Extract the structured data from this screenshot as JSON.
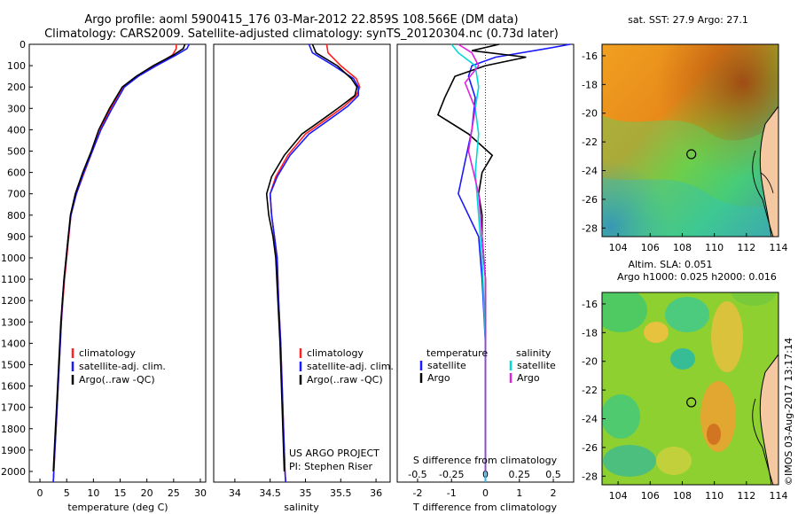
{
  "title": {
    "line1": "Argo profile: aoml 5900415_176 03-Mar-2012 22.859S 108.566E (DM data)",
    "line2": "Climatology: CARS2009. Satellite-adjusted climatology: synTS_20120304.nc (0.73d later)"
  },
  "watermark": "©IMOS 03-Aug-2017 13:17:14",
  "colors": {
    "climatology": "#ff2020",
    "satellite": "#1a1aff",
    "argo": "#000000",
    "sal_satellite": "#00d8d8",
    "sal_argo": "#e020e0"
  },
  "chart_data": [
    {
      "type": "line",
      "id": "temperature",
      "xlabel": "temperature (deg C)",
      "ylabel": "",
      "xlim": [
        -2,
        31
      ],
      "ylim": [
        2050,
        0
      ],
      "xticks": [
        "0",
        "5",
        "10",
        "15",
        "20",
        "25",
        "30"
      ],
      "yticks": [
        "0",
        "100",
        "200",
        "300",
        "400",
        "500",
        "600",
        "700",
        "800",
        "900",
        "1000",
        "1100",
        "1200",
        "1300",
        "1400",
        "1500",
        "1600",
        "1700",
        "1800",
        "1900",
        "2000"
      ],
      "legend": [
        "climatology",
        "satellite-adj. clim.",
        "Argo(..raw -QC)"
      ],
      "series": [
        {
          "name": "climatology",
          "color": "climatology",
          "points": [
            [
              25.5,
              0
            ],
            [
              25.5,
              20
            ],
            [
              24.8,
              50
            ],
            [
              21.5,
              100
            ],
            [
              18.2,
              150
            ],
            [
              15.5,
              200
            ],
            [
              13.2,
              300
            ],
            [
              11.3,
              400
            ],
            [
              9.8,
              500
            ],
            [
              8.3,
              600
            ],
            [
              6.8,
              700
            ],
            [
              5.8,
              800
            ],
            [
              5.4,
              900
            ],
            [
              5.0,
              1000
            ],
            [
              4.6,
              1100
            ],
            [
              4.3,
              1200
            ],
            [
              4.0,
              1300
            ],
            [
              3.8,
              1400
            ],
            [
              3.6,
              1500
            ],
            [
              3.4,
              1600
            ],
            [
              3.2,
              1700
            ],
            [
              3.0,
              1800
            ],
            [
              2.8,
              1900
            ],
            [
              2.6,
              2000
            ],
            [
              2.5,
              2050
            ]
          ]
        },
        {
          "name": "satellite-adj. clim.",
          "color": "satellite",
          "points": [
            [
              27.9,
              0
            ],
            [
              27.5,
              20
            ],
            [
              25.5,
              50
            ],
            [
              21.8,
              100
            ],
            [
              18.4,
              150
            ],
            [
              15.8,
              200
            ],
            [
              13.5,
              300
            ],
            [
              11.4,
              400
            ],
            [
              9.8,
              500
            ],
            [
              8.2,
              600
            ],
            [
              6.8,
              700
            ],
            [
              5.8,
              800
            ],
            [
              5.3,
              900
            ],
            [
              4.9,
              1000
            ],
            [
              4.5,
              1100
            ],
            [
              4.2,
              1200
            ],
            [
              4.0,
              1300
            ],
            [
              3.8,
              1400
            ],
            [
              3.6,
              1500
            ],
            [
              3.4,
              1600
            ],
            [
              3.2,
              1700
            ],
            [
              3.0,
              1800
            ],
            [
              2.8,
              1900
            ],
            [
              2.6,
              2000
            ],
            [
              2.5,
              2050
            ]
          ]
        },
        {
          "name": "Argo(..raw -QC)",
          "color": "argo",
          "points": [
            [
              27.1,
              0
            ],
            [
              26.8,
              20
            ],
            [
              25.0,
              50
            ],
            [
              21.2,
              100
            ],
            [
              18.0,
              150
            ],
            [
              15.4,
              200
            ],
            [
              13.0,
              300
            ],
            [
              11.0,
              400
            ],
            [
              9.6,
              500
            ],
            [
              8.0,
              600
            ],
            [
              6.6,
              700
            ],
            [
              5.7,
              800
            ],
            [
              5.3,
              900
            ],
            [
              4.9,
              1000
            ],
            [
              4.5,
              1100
            ],
            [
              4.2,
              1200
            ],
            [
              3.9,
              1300
            ],
            [
              3.7,
              1400
            ],
            [
              3.5,
              1500
            ],
            [
              3.3,
              1600
            ],
            [
              3.1,
              1700
            ],
            [
              2.9,
              1800
            ],
            [
              2.7,
              1900
            ],
            [
              2.5,
              2000
            ]
          ]
        }
      ]
    },
    {
      "type": "line",
      "id": "salinity",
      "xlabel": "salinity",
      "ylabel": "",
      "xlim": [
        33.7,
        36.2
      ],
      "ylim": [
        2050,
        0
      ],
      "xticks": [
        "34",
        "34.5",
        "35",
        "35.5",
        "36"
      ],
      "legend": [
        "climatology",
        "satellite-adj. clim.",
        "Argo(..raw -QC)"
      ],
      "annotation": [
        "US ARGO PROJECT",
        "PI: Stephen Riser"
      ],
      "series": [
        {
          "name": "climatology",
          "color": "climatology",
          "points": [
            [
              35.3,
              0
            ],
            [
              35.32,
              40
            ],
            [
              35.5,
              100
            ],
            [
              35.72,
              160
            ],
            [
              35.77,
              200
            ],
            [
              35.72,
              240
            ],
            [
              35.55,
              290
            ],
            [
              35.3,
              350
            ],
            [
              35.0,
              420
            ],
            [
              34.75,
              520
            ],
            [
              34.58,
              620
            ],
            [
              34.5,
              700
            ],
            [
              34.52,
              800
            ],
            [
              34.56,
              900
            ],
            [
              34.6,
              1000
            ],
            [
              34.62,
              1200
            ],
            [
              34.65,
              1400
            ],
            [
              34.67,
              1600
            ],
            [
              34.69,
              1800
            ],
            [
              34.71,
              2000
            ],
            [
              34.72,
              2050
            ]
          ]
        },
        {
          "name": "satellite-adj. clim.",
          "color": "satellite",
          "points": [
            [
              35.05,
              0
            ],
            [
              35.1,
              40
            ],
            [
              35.4,
              100
            ],
            [
              35.68,
              160
            ],
            [
              35.75,
              200
            ],
            [
              35.75,
              240
            ],
            [
              35.6,
              290
            ],
            [
              35.35,
              350
            ],
            [
              35.05,
              420
            ],
            [
              34.78,
              520
            ],
            [
              34.6,
              620
            ],
            [
              34.5,
              700
            ],
            [
              34.52,
              800
            ],
            [
              34.56,
              900
            ],
            [
              34.6,
              1000
            ],
            [
              34.62,
              1200
            ],
            [
              34.65,
              1400
            ],
            [
              34.67,
              1600
            ],
            [
              34.69,
              1800
            ],
            [
              34.71,
              2000
            ],
            [
              34.72,
              2050
            ]
          ]
        },
        {
          "name": "Argo(..raw -QC)",
          "color": "argo",
          "points": [
            [
              35.1,
              0
            ],
            [
              35.15,
              40
            ],
            [
              35.45,
              100
            ],
            [
              35.65,
              160
            ],
            [
              35.73,
              200
            ],
            [
              35.7,
              240
            ],
            [
              35.5,
              290
            ],
            [
              35.25,
              350
            ],
            [
              34.95,
              420
            ],
            [
              34.7,
              520
            ],
            [
              34.52,
              620
            ],
            [
              34.45,
              700
            ],
            [
              34.48,
              800
            ],
            [
              34.54,
              900
            ],
            [
              34.58,
              1000
            ],
            [
              34.61,
              1200
            ],
            [
              34.64,
              1400
            ],
            [
              34.66,
              1600
            ],
            [
              34.68,
              1800
            ],
            [
              34.7,
              2000
            ]
          ]
        }
      ]
    },
    {
      "type": "line",
      "id": "difference",
      "xlabel": "T difference from climatology",
      "xlabel_top": "S difference from climatology",
      "xlim": [
        -2.6,
        2.6
      ],
      "ylim": [
        2050,
        0
      ],
      "xticks": [
        "-2",
        "-1",
        "0",
        "1",
        "2"
      ],
      "xticks_sal": [
        "-0.5",
        "-0.25",
        "0",
        "0.25",
        "0.5"
      ],
      "legend_headers": [
        "temperature",
        "salinity"
      ],
      "legend": [
        "satellite",
        "Argo",
        "satellite",
        "Argo"
      ],
      "series": [
        {
          "name": "satellite",
          "color": "satellite",
          "quantity": "temperature",
          "points": [
            [
              2.5,
              0
            ],
            [
              1.8,
              20
            ],
            [
              0.3,
              60
            ],
            [
              -0.4,
              100
            ],
            [
              -0.5,
              150
            ],
            [
              -0.3,
              250
            ],
            [
              -0.4,
              400
            ],
            [
              -0.6,
              550
            ],
            [
              -0.8,
              700
            ],
            [
              -0.5,
              800
            ],
            [
              -0.2,
              900
            ],
            [
              -0.1,
              1100
            ],
            [
              0,
              1400
            ],
            [
              0,
              2050
            ]
          ]
        },
        {
          "name": "Argo",
          "color": "argo",
          "quantity": "temperature",
          "points": [
            [
              0.4,
              0
            ],
            [
              -0.4,
              30
            ],
            [
              1.2,
              60
            ],
            [
              0,
              100
            ],
            [
              -0.9,
              150
            ],
            [
              -1.2,
              250
            ],
            [
              -1.4,
              330
            ],
            [
              -0.5,
              420
            ],
            [
              0.2,
              520
            ],
            [
              -0.1,
              600
            ],
            [
              -0.2,
              700
            ],
            [
              -0.1,
              800
            ],
            [
              -0.1,
              900
            ],
            [
              0,
              1100
            ],
            [
              0,
              2000
            ]
          ]
        },
        {
          "name": "satellite",
          "color": "sal_satellite",
          "quantity": "salinity",
          "points": [
            [
              -1.0,
              0
            ],
            [
              -0.8,
              40
            ],
            [
              -0.3,
              100
            ],
            [
              -0.2,
              200
            ],
            [
              -0.3,
              300
            ],
            [
              -0.2,
              420
            ],
            [
              -0.3,
              600
            ],
            [
              -0.2,
              800
            ],
            [
              -0.1,
              1000
            ],
            [
              0,
              1400
            ],
            [
              0,
              2050
            ]
          ]
        },
        {
          "name": "Argo",
          "color": "sal_argo",
          "quantity": "salinity",
          "points": [
            [
              -0.8,
              0
            ],
            [
              -0.4,
              40
            ],
            [
              -0.2,
              100
            ],
            [
              -0.6,
              180
            ],
            [
              -0.3,
              300
            ],
            [
              -0.5,
              500
            ],
            [
              -0.2,
              700
            ],
            [
              -0.1,
              900
            ],
            [
              0,
              1100
            ],
            [
              0,
              2000
            ]
          ]
        }
      ]
    },
    {
      "type": "heatmap",
      "id": "sst-map",
      "title": "sat. SST: 27.9 Argo: 27.1",
      "xlim": [
        103,
        114
      ],
      "ylim": [
        -28.6,
        -15.2
      ],
      "xticks": [
        "104",
        "106",
        "108",
        "110",
        "112",
        "114"
      ],
      "yticks": [
        "-16",
        "-18",
        "-20",
        "-22",
        "-24",
        "-26",
        "-28"
      ],
      "marker": {
        "lon": 108.566,
        "lat": -22.859
      }
    },
    {
      "type": "heatmap",
      "id": "sla-map",
      "title_lines": [
        "Altim. SLA: 0.051",
        "Argo h1000: 0.025 h2000: 0.016"
      ],
      "xlim": [
        103,
        114
      ],
      "ylim": [
        -28.6,
        -15.2
      ],
      "xticks": [
        "104",
        "106",
        "108",
        "110",
        "112",
        "114"
      ],
      "yticks": [
        "-16",
        "-18",
        "-20",
        "-22",
        "-24",
        "-26",
        "-28"
      ],
      "marker": {
        "lon": 108.566,
        "lat": -22.859
      }
    }
  ]
}
